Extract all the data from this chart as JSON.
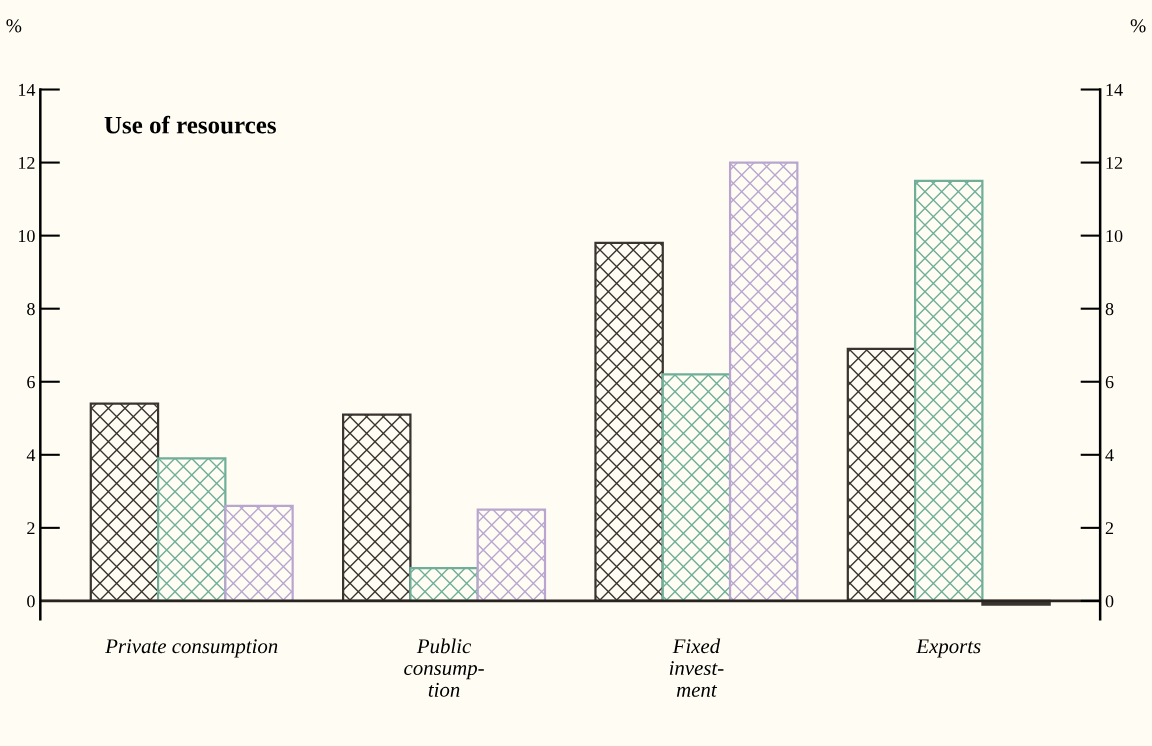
{
  "chart_data": {
    "type": "bar",
    "title": "Use of resources",
    "ylabel": "%",
    "y2label": "%",
    "categories": [
      "Private consumption",
      "Public\nconsump-\ntion",
      "Fixed\ninvest-\nment",
      "Exports"
    ],
    "series": [
      {
        "color": "#3a3430",
        "values": [
          5.4,
          5.1,
          9.8,
          6.9
        ]
      },
      {
        "color": "#6fae98",
        "values": [
          3.9,
          0.9,
          6.2,
          11.5
        ]
      },
      {
        "color": "#b8a6d0",
        "colors": [
          "#b8a6d0",
          "#b8a6d0",
          "#b8a6d0",
          "#3a3430"
        ],
        "values": [
          2.6,
          2.5,
          12.0,
          -0.1
        ]
      }
    ],
    "ylim": [
      -0.5,
      14
    ],
    "yticks": [
      0,
      2,
      4,
      6,
      8,
      10,
      12,
      14
    ],
    "y2lim": [
      -0.5,
      14
    ],
    "y2ticks": [
      0,
      2,
      4,
      6,
      8,
      10,
      12,
      14
    ],
    "grid": false,
    "legend": false
  }
}
